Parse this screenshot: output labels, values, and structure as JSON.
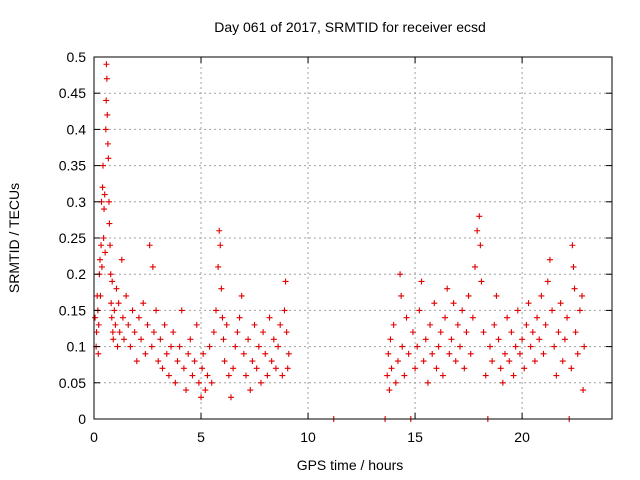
{
  "chart_data": {
    "type": "scatter",
    "title": "Day 061 of 2017, SRMTID for receiver ecsd",
    "xlabel": "GPS time / hours",
    "ylabel": "SRMTID / TECUs",
    "xlim": [
      0,
      24.2
    ],
    "ylim": [
      0,
      0.5
    ],
    "xticks": [
      0,
      5,
      10,
      15,
      20
    ],
    "xtick_labels": [
      "0",
      "5",
      "10",
      "15",
      "20"
    ],
    "yticks": [
      0,
      0.05,
      0.1,
      0.15,
      0.2,
      0.25,
      0.3,
      0.35,
      0.4,
      0.45,
      0.5
    ],
    "ytick_labels": [
      "0",
      "0.05",
      "0.1",
      "0.15",
      "0.2",
      "0.25",
      "0.3",
      "0.35",
      "0.4",
      "0.45",
      "0.5"
    ],
    "grid": true,
    "marker": "+",
    "series": [
      {
        "name": "SRMTID",
        "color": "#e00000",
        "points": [
          [
            0.05,
            0.14
          ],
          [
            0.1,
            0.1
          ],
          [
            0.12,
            0.12
          ],
          [
            0.15,
            0.17
          ],
          [
            0.18,
            0.15
          ],
          [
            0.2,
            0.09
          ],
          [
            0.22,
            0.13
          ],
          [
            0.25,
            0.2
          ],
          [
            0.28,
            0.22
          ],
          [
            0.3,
            0.17
          ],
          [
            0.33,
            0.24
          ],
          [
            0.35,
            0.3
          ],
          [
            0.37,
            0.21
          ],
          [
            0.4,
            0.32
          ],
          [
            0.42,
            0.35
          ],
          [
            0.45,
            0.25
          ],
          [
            0.47,
            0.29
          ],
          [
            0.5,
            0.31
          ],
          [
            0.52,
            0.23
          ],
          [
            0.55,
            0.4
          ],
          [
            0.57,
            0.44
          ],
          [
            0.58,
            0.49
          ],
          [
            0.6,
            0.47
          ],
          [
            0.62,
            0.42
          ],
          [
            0.65,
            0.38
          ],
          [
            0.67,
            0.36
          ],
          [
            0.7,
            0.3
          ],
          [
            0.72,
            0.27
          ],
          [
            0.75,
            0.24
          ],
          [
            0.78,
            0.2
          ],
          [
            0.8,
            0.16
          ],
          [
            0.83,
            0.14
          ],
          [
            0.85,
            0.19
          ],
          [
            0.88,
            0.12
          ],
          [
            0.9,
            0.11
          ],
          [
            0.95,
            0.15
          ],
          [
            1.0,
            0.13
          ],
          [
            1.05,
            0.18
          ],
          [
            1.1,
            0.1
          ],
          [
            1.15,
            0.16
          ],
          [
            1.2,
            0.12
          ],
          [
            1.3,
            0.22
          ],
          [
            1.35,
            0.14
          ],
          [
            1.4,
            0.11
          ],
          [
            1.5,
            0.17
          ],
          [
            1.6,
            0.13
          ],
          [
            1.7,
            0.1
          ],
          [
            1.8,
            0.15
          ],
          [
            1.9,
            0.12
          ],
          [
            2.0,
            0.08
          ],
          [
            2.1,
            0.14
          ],
          [
            2.2,
            0.11
          ],
          [
            2.3,
            0.16
          ],
          [
            2.4,
            0.09
          ],
          [
            2.5,
            0.13
          ],
          [
            2.6,
            0.24
          ],
          [
            2.7,
            0.1
          ],
          [
            2.75,
            0.21
          ],
          [
            2.8,
            0.12
          ],
          [
            2.9,
            0.15
          ],
          [
            3.0,
            0.08
          ],
          [
            3.1,
            0.11
          ],
          [
            3.2,
            0.07
          ],
          [
            3.3,
            0.13
          ],
          [
            3.4,
            0.09
          ],
          [
            3.5,
            0.06
          ],
          [
            3.6,
            0.1
          ],
          [
            3.7,
            0.12
          ],
          [
            3.8,
            0.05
          ],
          [
            3.9,
            0.08
          ],
          [
            4.0,
            0.1
          ],
          [
            4.1,
            0.15
          ],
          [
            4.2,
            0.07
          ],
          [
            4.3,
            0.04
          ],
          [
            4.4,
            0.09
          ],
          [
            4.5,
            0.11
          ],
          [
            4.6,
            0.06
          ],
          [
            4.7,
            0.08
          ],
          [
            4.8,
            0.13
          ],
          [
            4.9,
            0.05
          ],
          [
            5.0,
            0.03
          ],
          [
            5.05,
            0.07
          ],
          [
            5.1,
            0.09
          ],
          [
            5.2,
            0.04
          ],
          [
            5.3,
            0.06
          ],
          [
            5.4,
            0.1
          ],
          [
            5.5,
            0.05
          ],
          [
            5.6,
            0.12
          ],
          [
            5.7,
            0.15
          ],
          [
            5.8,
            0.21
          ],
          [
            5.85,
            0.26
          ],
          [
            5.9,
            0.24
          ],
          [
            5.95,
            0.18
          ],
          [
            6.0,
            0.14
          ],
          [
            6.05,
            0.11
          ],
          [
            6.1,
            0.08
          ],
          [
            6.2,
            0.13
          ],
          [
            6.3,
            0.06
          ],
          [
            6.4,
            0.03
          ],
          [
            6.5,
            0.07
          ],
          [
            6.6,
            0.1
          ],
          [
            6.7,
            0.12
          ],
          [
            6.8,
            0.14
          ],
          [
            6.9,
            0.17
          ],
          [
            7.0,
            0.09
          ],
          [
            7.1,
            0.06
          ],
          [
            7.2,
            0.11
          ],
          [
            7.3,
            0.04
          ],
          [
            7.4,
            0.08
          ],
          [
            7.5,
            0.13
          ],
          [
            7.6,
            0.07
          ],
          [
            7.7,
            0.1
          ],
          [
            7.8,
            0.05
          ],
          [
            7.9,
            0.12
          ],
          [
            8.0,
            0.09
          ],
          [
            8.1,
            0.06
          ],
          [
            8.2,
            0.14
          ],
          [
            8.3,
            0.08
          ],
          [
            8.4,
            0.11
          ],
          [
            8.5,
            0.07
          ],
          [
            8.6,
            0.1
          ],
          [
            8.7,
            0.13
          ],
          [
            8.8,
            0.06
          ],
          [
            8.9,
            0.15
          ],
          [
            8.95,
            0.19
          ],
          [
            9.0,
            0.12
          ],
          [
            9.05,
            0.07
          ],
          [
            9.1,
            0.09
          ],
          [
            11.2,
            0.0
          ],
          [
            13.6,
            0.0
          ],
          [
            13.7,
            0.06
          ],
          [
            13.75,
            0.09
          ],
          [
            13.8,
            0.04
          ],
          [
            13.85,
            0.11
          ],
          [
            13.9,
            0.07
          ],
          [
            14.0,
            0.13
          ],
          [
            14.1,
            0.05
          ],
          [
            14.2,
            0.08
          ],
          [
            14.3,
            0.2
          ],
          [
            14.35,
            0.17
          ],
          [
            14.4,
            0.1
          ],
          [
            14.5,
            0.06
          ],
          [
            14.6,
            0.14
          ],
          [
            14.7,
            0.09
          ],
          [
            14.8,
            0.0
          ],
          [
            14.9,
            0.12
          ],
          [
            15.0,
            0.07
          ],
          [
            15.1,
            0.1
          ],
          [
            15.2,
            0.15
          ],
          [
            15.3,
            0.19
          ],
          [
            15.4,
            0.08
          ],
          [
            15.5,
            0.11
          ],
          [
            15.6,
            0.05
          ],
          [
            15.7,
            0.13
          ],
          [
            15.8,
            0.09
          ],
          [
            15.9,
            0.16
          ],
          [
            16.0,
            0.07
          ],
          [
            16.1,
            0.1
          ],
          [
            16.2,
            0.12
          ],
          [
            16.3,
            0.06
          ],
          [
            16.4,
            0.14
          ],
          [
            16.5,
            0.18
          ],
          [
            16.6,
            0.09
          ],
          [
            16.7,
            0.11
          ],
          [
            16.8,
            0.16
          ],
          [
            16.9,
            0.08
          ],
          [
            17.0,
            0.13
          ],
          [
            17.1,
            0.1
          ],
          [
            17.2,
            0.15
          ],
          [
            17.3,
            0.07
          ],
          [
            17.4,
            0.12
          ],
          [
            17.5,
            0.17
          ],
          [
            17.6,
            0.09
          ],
          [
            17.7,
            0.14
          ],
          [
            17.8,
            0.21
          ],
          [
            17.9,
            0.26
          ],
          [
            18.0,
            0.28
          ],
          [
            18.05,
            0.24
          ],
          [
            18.1,
            0.19
          ],
          [
            18.2,
            0.12
          ],
          [
            18.3,
            0.06
          ],
          [
            18.4,
            0.0
          ],
          [
            18.5,
            0.1
          ],
          [
            18.6,
            0.08
          ],
          [
            18.7,
            0.13
          ],
          [
            18.8,
            0.17
          ],
          [
            18.9,
            0.11
          ],
          [
            19.0,
            0.07
          ],
          [
            19.1,
            0.05
          ],
          [
            19.2,
            0.09
          ],
          [
            19.3,
            0.14
          ],
          [
            19.4,
            0.08
          ],
          [
            19.5,
            0.12
          ],
          [
            19.6,
            0.06
          ],
          [
            19.7,
            0.1
          ],
          [
            19.8,
            0.15
          ],
          [
            19.9,
            0.09
          ],
          [
            20.0,
            0.11
          ],
          [
            20.1,
            0.07
          ],
          [
            20.2,
            0.13
          ],
          [
            20.3,
            0.16
          ],
          [
            20.4,
            0.1
          ],
          [
            20.5,
            0.12
          ],
          [
            20.6,
            0.08
          ],
          [
            20.7,
            0.14
          ],
          [
            20.8,
            0.11
          ],
          [
            20.9,
            0.17
          ],
          [
            21.0,
            0.09
          ],
          [
            21.1,
            0.13
          ],
          [
            21.2,
            0.19
          ],
          [
            21.3,
            0.22
          ],
          [
            21.4,
            0.15
          ],
          [
            21.5,
            0.1
          ],
          [
            21.6,
            0.06
          ],
          [
            21.7,
            0.12
          ],
          [
            21.8,
            0.16
          ],
          [
            21.9,
            0.08
          ],
          [
            22.0,
            0.11
          ],
          [
            22.1,
            0.14
          ],
          [
            22.2,
            0.0
          ],
          [
            22.3,
            0.07
          ],
          [
            22.35,
            0.24
          ],
          [
            22.4,
            0.21
          ],
          [
            22.45,
            0.18
          ],
          [
            22.5,
            0.12
          ],
          [
            22.6,
            0.09
          ],
          [
            22.7,
            0.15
          ],
          [
            22.8,
            0.17
          ],
          [
            22.85,
            0.04
          ],
          [
            22.9,
            0.1
          ]
        ]
      }
    ]
  }
}
